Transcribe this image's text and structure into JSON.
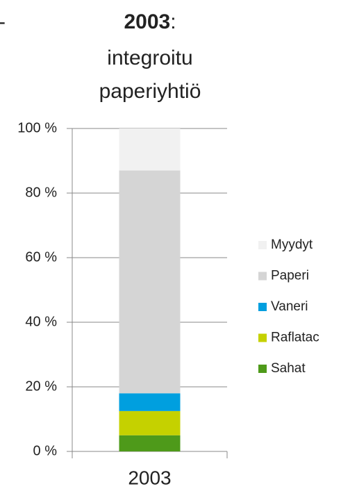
{
  "chart_data": {
    "type": "stacked_bar",
    "edge_text": "-",
    "title_bold": "2003",
    "title_suffix": ":",
    "subtitle_lines": [
      "integroitu",
      "paperiyhtiö"
    ],
    "categories": [
      "2003"
    ],
    "series": [
      {
        "name": "Sahat",
        "color": "#4e9a1a",
        "values": [
          5
        ]
      },
      {
        "name": "Raflatac",
        "color": "#c5d100",
        "values": [
          7.5
        ]
      },
      {
        "name": "Vaneri",
        "color": "#009fdf",
        "values": [
          5.5
        ]
      },
      {
        "name": "Paperi",
        "color": "#d5d5d5",
        "values": [
          69
        ]
      },
      {
        "name": "Myydyt",
        "color": "#f1f1f1",
        "values": [
          13
        ]
      }
    ],
    "ylim": [
      0,
      100
    ],
    "yticks": [
      {
        "value": 0,
        "label": "0 %"
      },
      {
        "value": 20,
        "label": "20 %"
      },
      {
        "value": 40,
        "label": "40 %"
      },
      {
        "value": 60,
        "label": "60 %"
      },
      {
        "value": 80,
        "label": "80 %"
      },
      {
        "value": 100,
        "label": "100 %"
      }
    ],
    "grid": true,
    "legend": "right"
  }
}
